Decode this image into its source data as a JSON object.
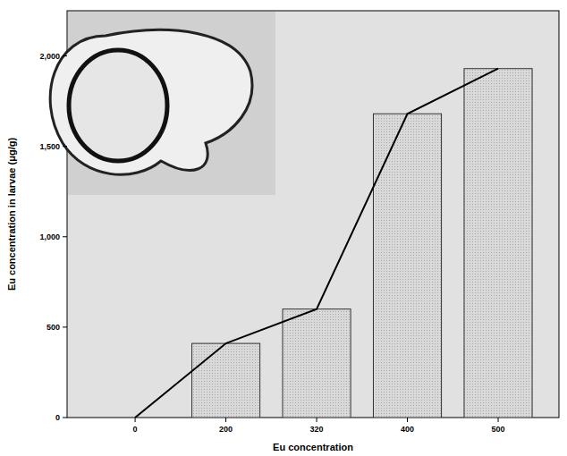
{
  "chart_data": {
    "type": "bar",
    "x_label": "Eu concentration",
    "y_label": "Eu concentration in larvae (μg/g)",
    "categories": [
      "0",
      "200",
      "320",
      "400",
      "500"
    ],
    "series": [
      {
        "type": "bar",
        "color": "#d9d9d9",
        "values": [
          0,
          410,
          600,
          1680,
          1930
        ]
      },
      {
        "type": "line",
        "color": "#000000",
        "values": [
          0,
          410,
          600,
          1680,
          1930
        ]
      }
    ],
    "ylim": [
      0,
      2250
    ],
    "yticks": [
      0,
      500,
      {
        "value": 1000,
        "label": "1,000"
      },
      {
        "value": 1500,
        "label": "1,500"
      },
      {
        "value": 2000,
        "label": "2,000"
      }
    ],
    "grid": false
  }
}
